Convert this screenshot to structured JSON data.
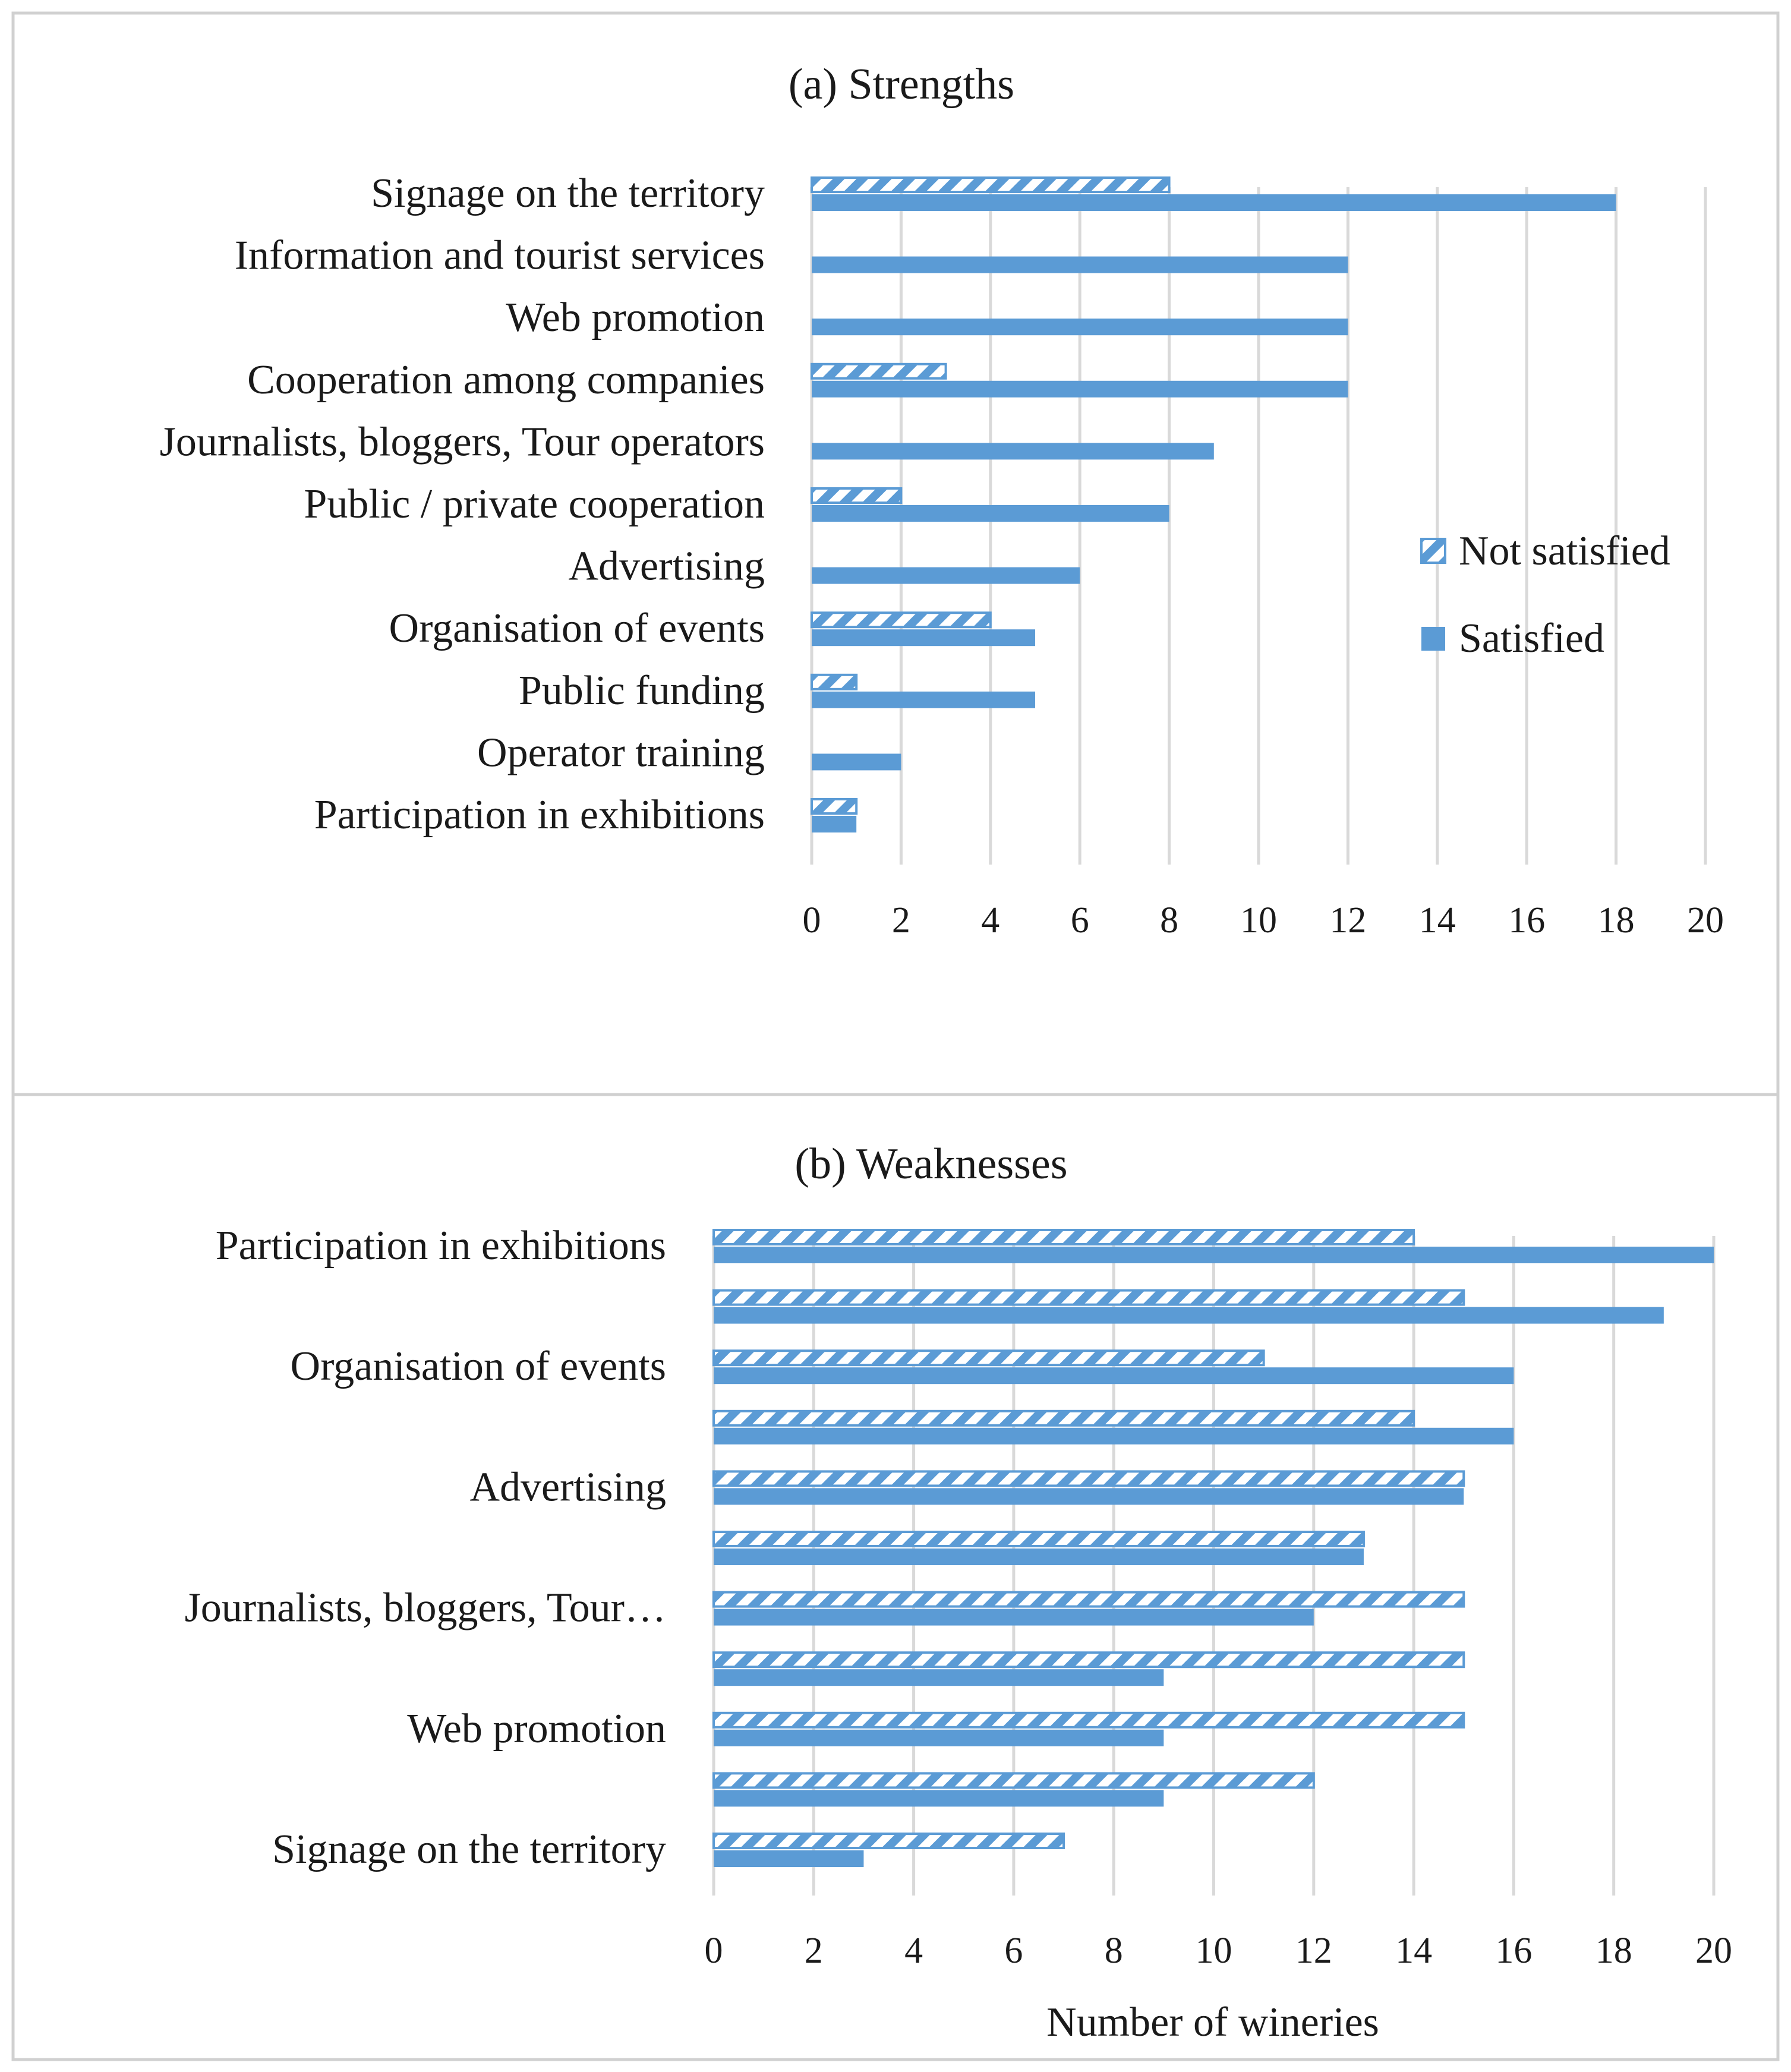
{
  "colors": {
    "bar": "#5b9bd5",
    "grid": "#d9d9d9",
    "frame": "#d0d0d0",
    "text": "#1a1a1a",
    "hatch_bg": "#ffffff"
  },
  "legend": {
    "not_satisfied": "Not satisfied",
    "satisfied": "Satisfied"
  },
  "chart_data": [
    {
      "type": "bar",
      "orientation": "horizontal",
      "title": "(a) Strengths",
      "xlabel": "",
      "xlim": [
        0,
        20
      ],
      "xticks": [
        0,
        2,
        4,
        6,
        8,
        10,
        12,
        14,
        16,
        18,
        20
      ],
      "grid": true,
      "legend_position": "right",
      "categories": [
        "Signage on the territory",
        "Information and tourist services",
        "Web promotion",
        "Cooperation among companies",
        "Journalists, bloggers, Tour operators",
        "Public / private cooperation",
        "Advertising",
        "Organisation of events",
        "Public funding",
        "Operator training",
        "Participation in exhibitions"
      ],
      "series": [
        {
          "name": "Not satisfied",
          "pattern": "hatched",
          "values": [
            8,
            0,
            0,
            3,
            0,
            2,
            0,
            4,
            1,
            0,
            1
          ]
        },
        {
          "name": "Satisfied",
          "pattern": "solid",
          "values": [
            18,
            12,
            12,
            12,
            9,
            8,
            6,
            5,
            5,
            2,
            1
          ]
        }
      ]
    },
    {
      "type": "bar",
      "orientation": "horizontal",
      "title": "(b) Weaknesses",
      "xlabel": "Number of wineries",
      "xlim": [
        0,
        20
      ],
      "xticks": [
        0,
        2,
        4,
        6,
        8,
        10,
        12,
        14,
        16,
        18,
        20
      ],
      "grid": true,
      "categories": [
        "Participation in exhibitions",
        "",
        "Organisation of events",
        "",
        "Advertising",
        "",
        "Journalists, bloggers, Tour…",
        "",
        "Web promotion",
        "",
        "Signage on the territory"
      ],
      "series": [
        {
          "name": "Not satisfied",
          "pattern": "hatched",
          "values": [
            14,
            15,
            11,
            14,
            15,
            13,
            15,
            15,
            15,
            12,
            7
          ]
        },
        {
          "name": "Satisfied",
          "pattern": "solid",
          "values": [
            20,
            19,
            16,
            16,
            15,
            13,
            12,
            9,
            9,
            9,
            3
          ]
        }
      ]
    }
  ]
}
